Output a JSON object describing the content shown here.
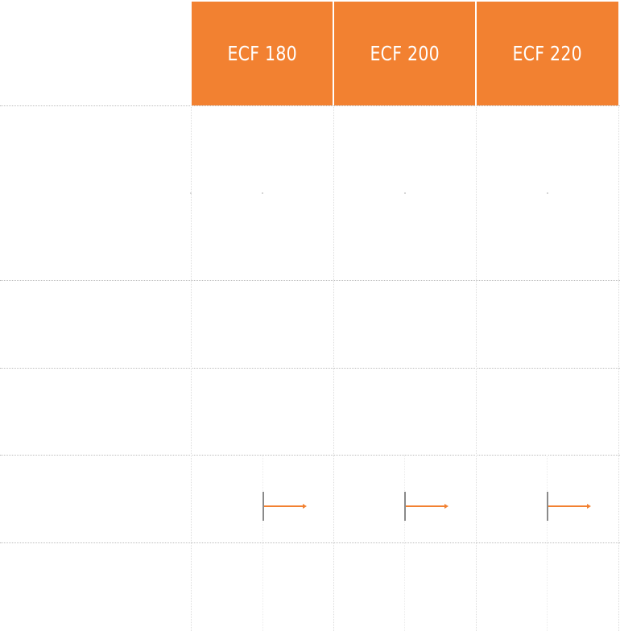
{
  "columns": [
    {
      "label": "ECF 180"
    },
    {
      "label": "ECF 200"
    },
    {
      "label": "ECF 220"
    }
  ],
  "colors": {
    "header_bg": "#f28131",
    "header_text": "#ffffff",
    "arrow": "#f28131",
    "stem": "#8a8a8a",
    "grid": "#bdbdbd"
  },
  "icons": {
    "row_marker": "arrow-right-icon"
  }
}
